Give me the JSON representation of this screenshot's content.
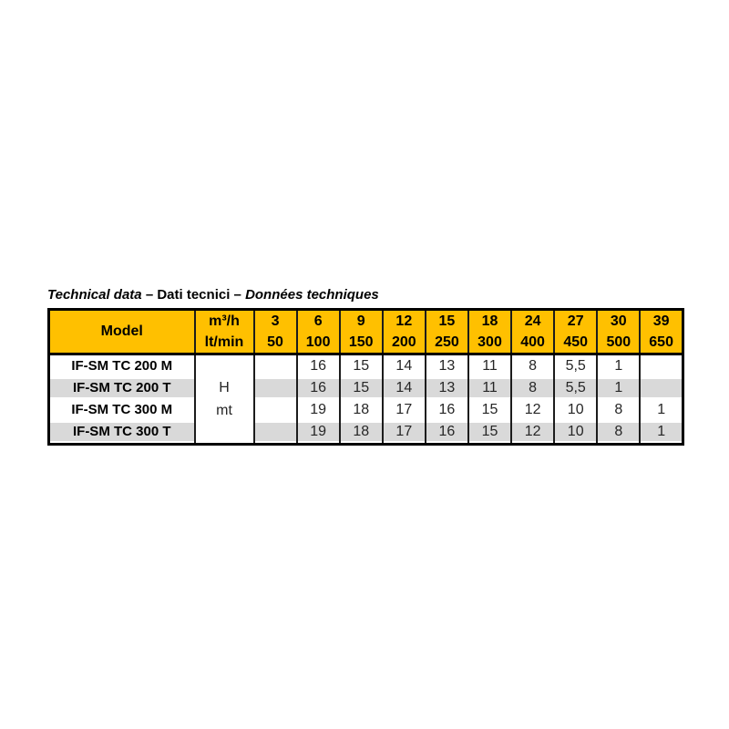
{
  "page": {
    "background": "#ffffff"
  },
  "title": {
    "segments": [
      {
        "text": "Technical data",
        "style": "bold-italic"
      },
      {
        "text": " – ",
        "style": "bold"
      },
      {
        "text": "Dati tecnici",
        "style": "bold"
      },
      {
        "text": " – ",
        "style": "bold"
      },
      {
        "text": "Données techniques",
        "style": "bold-italic"
      }
    ]
  },
  "table": {
    "colors": {
      "header_bg": "#FFC000",
      "row_alt_bg": "#D9D9D9",
      "outer_border": "#000000",
      "inner_border": "#1C1C1C",
      "text": "#262626"
    },
    "header": {
      "model_label": "Model",
      "unit_top": "m³/h",
      "unit_bottom": "lt/min",
      "flow_columns": [
        {
          "m3h": "3",
          "ltmin": "50"
        },
        {
          "m3h": "6",
          "ltmin": "100"
        },
        {
          "m3h": "9",
          "ltmin": "150"
        },
        {
          "m3h": "12",
          "ltmin": "200"
        },
        {
          "m3h": "15",
          "ltmin": "250"
        },
        {
          "m3h": "18",
          "ltmin": "300"
        },
        {
          "m3h": "24",
          "ltmin": "400"
        },
        {
          "m3h": "27",
          "ltmin": "450"
        },
        {
          "m3h": "30",
          "ltmin": "500"
        },
        {
          "m3h": "39",
          "ltmin": "650"
        }
      ]
    },
    "unit_cell": {
      "line1": "H",
      "line2": "mt"
    },
    "rows": [
      {
        "model": "IF-SM TC 200 M",
        "shaded": false,
        "values": [
          "",
          "16",
          "15",
          "14",
          "13",
          "11",
          "8",
          "5,5",
          "1",
          ""
        ]
      },
      {
        "model": "IF-SM TC 200 T",
        "shaded": true,
        "values": [
          "",
          "16",
          "15",
          "14",
          "13",
          "11",
          "8",
          "5,5",
          "1",
          ""
        ]
      },
      {
        "model": "IF-SM TC 300 M",
        "shaded": false,
        "values": [
          "",
          "19",
          "18",
          "17",
          "16",
          "15",
          "12",
          "10",
          "8",
          "1"
        ]
      },
      {
        "model": "IF-SM TC 300 T",
        "shaded": true,
        "values": [
          "",
          "19",
          "18",
          "17",
          "16",
          "15",
          "12",
          "10",
          "8",
          "1"
        ]
      }
    ]
  }
}
